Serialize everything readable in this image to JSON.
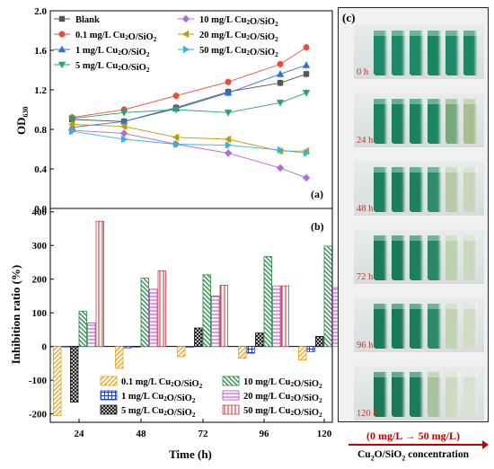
{
  "panel_a": {
    "label": "(a)",
    "ylabel_main": "OD",
    "ylabel_sub": "630",
    "y_ticks": [
      "0.0",
      "0.4",
      "0.8",
      "1.2",
      "1.6",
      "2.0"
    ],
    "legend_col1": [
      "Blank",
      "0.1 mg/L Cu2O/SiO2",
      "1 mg/L Cu2O/SiO2",
      "5 mg/L Cu2O/SiO2"
    ],
    "legend_col2": [
      "10 mg/L Cu2O/SiO2",
      "20 mg/L Cu2O/SiO2",
      "50 mg/L Cu2O/SiO2"
    ]
  },
  "panel_b": {
    "label": "(b)",
    "ylabel": "Inhibition ratio (%)",
    "y_ticks": [
      "-200",
      "-100",
      "0",
      "100",
      "200",
      "300",
      "400"
    ],
    "xlabel": "Time (h)",
    "x_ticks": [
      "24",
      "48",
      "72",
      "96",
      "120"
    ],
    "legend_col1": [
      "0.1 mg/L Cu2O/SiO2",
      "1 mg/L Cu2O/SiO2",
      "5 mg/L Cu2O/SiO2"
    ],
    "legend_col2": [
      "10 mg/L Cu2O/SiO2",
      "20 mg/L Cu2O/SiO2",
      "50 mg/L Cu2O/SiO2"
    ]
  },
  "panel_c": {
    "label": "(c)",
    "time_labels": [
      "0 h",
      "24 h",
      "48 h",
      "72 h",
      "96 h",
      "120 h"
    ],
    "caption_range": "(0 mg/L → 50 mg/L)",
    "caption_axis": "Cu2O/SiO2 concentration"
  },
  "colors": {
    "blank": "#555555",
    "c01": "#e74c3c",
    "c1": "#2e6fd9",
    "c5": "#28a17a",
    "c10": "#b36bd6",
    "c20": "#b8a000",
    "c50": "#3bb3d9"
  },
  "chart_data": [
    {
      "type": "line",
      "title": "",
      "xlabel": "",
      "ylabel": "OD630",
      "x": [
        0,
        24,
        48,
        72,
        96,
        108
      ],
      "ylim": [
        0,
        2.0
      ],
      "series": [
        {
          "name": "Blank",
          "values": [
            0.9,
            0.88,
            1.02,
            1.18,
            1.27,
            1.36
          ]
        },
        {
          "name": "0.1 mg/L Cu2O/SiO2",
          "values": [
            0.92,
            1.0,
            1.14,
            1.28,
            1.46,
            1.63
          ]
        },
        {
          "name": "1 mg/L Cu2O/SiO2",
          "values": [
            0.82,
            0.88,
            1.01,
            1.17,
            1.36,
            1.45
          ]
        },
        {
          "name": "5 mg/L Cu2O/SiO2",
          "values": [
            0.91,
            0.97,
            1.0,
            0.97,
            1.07,
            1.17
          ]
        },
        {
          "name": "10 mg/L Cu2O/SiO2",
          "values": [
            0.79,
            0.76,
            0.65,
            0.56,
            0.41,
            0.31
          ]
        },
        {
          "name": "20 mg/L Cu2O/SiO2",
          "values": [
            0.85,
            0.83,
            0.72,
            0.7,
            0.58,
            0.58
          ]
        },
        {
          "name": "50 mg/L Cu2O/SiO2",
          "values": [
            0.78,
            0.7,
            0.65,
            0.64,
            0.59,
            0.56
          ]
        }
      ]
    },
    {
      "type": "bar",
      "title": "",
      "xlabel": "Time (h)",
      "ylabel": "Inhibition ratio (%)",
      "categories": [
        "24",
        "48",
        "72",
        "96",
        "120"
      ],
      "ylim": [
        -200,
        400
      ],
      "series": [
        {
          "name": "0.1 mg/L Cu2O/SiO2",
          "values": [
            -205,
            -65,
            -30,
            -35,
            -40
          ]
        },
        {
          "name": "1 mg/L Cu2O/SiO2",
          "values": [
            0,
            -4,
            -2,
            -20,
            -15
          ]
        },
        {
          "name": "5 mg/L Cu2O/SiO2",
          "values": [
            -165,
            0,
            55,
            40,
            30
          ]
        },
        {
          "name": "10 mg/L Cu2O/SiO2",
          "values": [
            105,
            203,
            213,
            267,
            298
          ]
        },
        {
          "name": "20 mg/L Cu2O/SiO2",
          "values": [
            70,
            170,
            150,
            180,
            175
          ]
        },
        {
          "name": "50 mg/L Cu2O/SiO2",
          "values": [
            372,
            225,
            182,
            180,
            176
          ]
        }
      ]
    }
  ]
}
